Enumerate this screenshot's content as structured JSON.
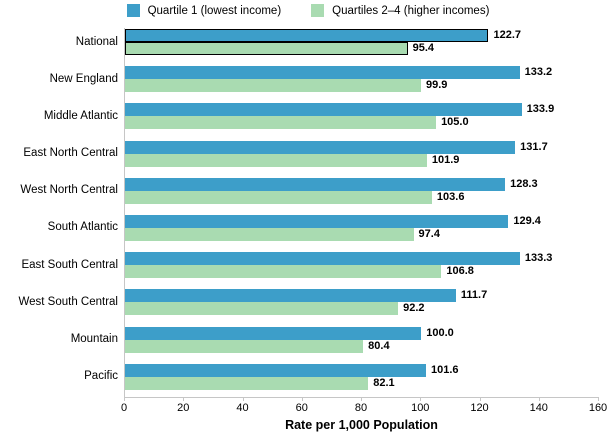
{
  "colors": {
    "quartile1_blue": "#3D9EC9",
    "quartiles24_green": "#A9DBB1",
    "national_outline": "#000000",
    "axis_line": "#C6C6C6",
    "text": "#000000"
  },
  "chart_data": {
    "type": "bar",
    "orientation": "horizontal",
    "title": "",
    "xlabel": "Rate per 1,000 Population",
    "ylabel": "",
    "xlim": [
      0,
      160
    ],
    "xticks": [
      0,
      20,
      40,
      60,
      80,
      100,
      120,
      140,
      160
    ],
    "grid": false,
    "legend_position": "top",
    "categories": [
      "National",
      "New England",
      "Middle Atlantic",
      "East North Central",
      "West North Central",
      "South Atlantic",
      "East South Central",
      "West South Central",
      "Mountain",
      "Pacific"
    ],
    "series": [
      {
        "name": "Quartile 1 (lowest income)",
        "color": "#3D9EC9",
        "values": [
          122.7,
          133.2,
          133.9,
          131.7,
          128.3,
          129.4,
          133.3,
          111.7,
          100.0,
          101.6
        ]
      },
      {
        "name": "Quartiles 2–4 (higher incomes)",
        "color": "#A9DBB1",
        "values": [
          95.4,
          99.9,
          105.0,
          101.9,
          103.6,
          97.4,
          106.8,
          92.2,
          80.4,
          82.1
        ]
      }
    ],
    "highlighted_category": "National",
    "value_label_format": "one_decimal"
  }
}
